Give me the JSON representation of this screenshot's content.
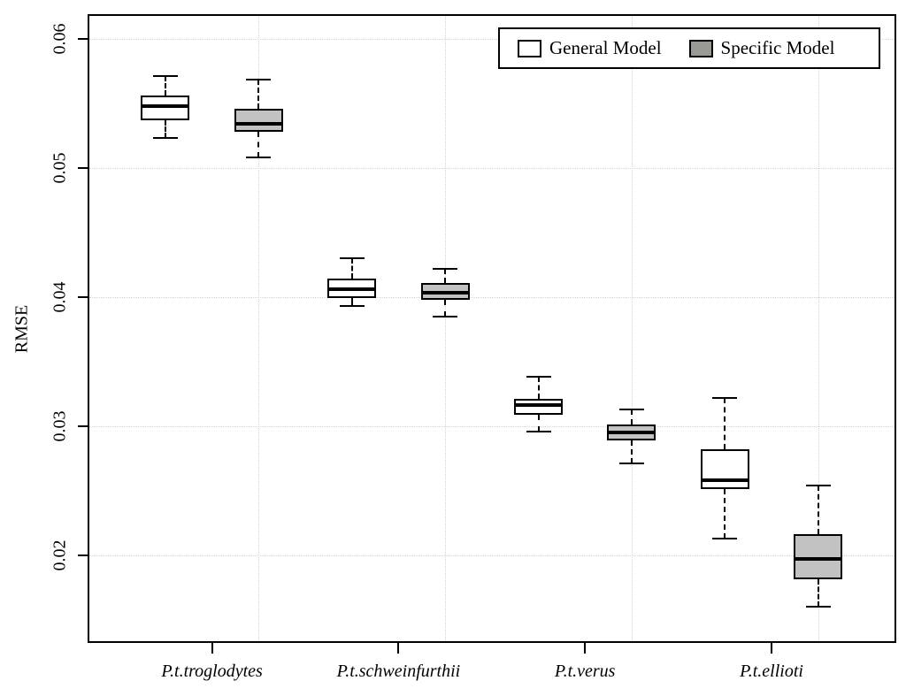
{
  "figure": {
    "legend": {
      "items": [
        {
          "label": "General Model",
          "fill": "#ffffff"
        },
        {
          "label": "Specific Model",
          "fill": "#9a9a94"
        }
      ]
    }
  },
  "chart_data": {
    "type": "boxplot",
    "title": "",
    "xlabel": "",
    "ylabel": "RMSE",
    "categories": [
      "P.t.troglodytes",
      "P.t.schweinfurthii",
      "P.t.verus",
      "P.t.ellioti"
    ],
    "series": [
      {
        "name": "General Model",
        "fill": "#ffffff",
        "boxes": [
          {
            "whisker_low": 0.0523,
            "q1": 0.0537,
            "median": 0.0548,
            "q3": 0.0556,
            "whisker_high": 0.0571
          },
          {
            "whisker_low": 0.0393,
            "q1": 0.0399,
            "median": 0.0406,
            "q3": 0.0414,
            "whisker_high": 0.043
          },
          {
            "whisker_low": 0.0296,
            "q1": 0.0309,
            "median": 0.0316,
            "q3": 0.0321,
            "whisker_high": 0.0338
          },
          {
            "whisker_low": 0.0213,
            "q1": 0.0251,
            "median": 0.0258,
            "q3": 0.0282,
            "whisker_high": 0.0322
          }
        ]
      },
      {
        "name": "Specific Model",
        "fill": "#c2c2c2",
        "boxes": [
          {
            "whisker_low": 0.0508,
            "q1": 0.0528,
            "median": 0.0534,
            "q3": 0.0546,
            "whisker_high": 0.0568
          },
          {
            "whisker_low": 0.0385,
            "q1": 0.0398,
            "median": 0.0403,
            "q3": 0.0411,
            "whisker_high": 0.0422
          },
          {
            "whisker_low": 0.0271,
            "q1": 0.0289,
            "median": 0.0295,
            "q3": 0.0301,
            "whisker_high": 0.0313
          },
          {
            "whisker_low": 0.016,
            "q1": 0.0181,
            "median": 0.0197,
            "q3": 0.0216,
            "whisker_high": 0.0254
          }
        ]
      }
    ],
    "yticks": [
      0.02,
      0.03,
      0.04,
      0.05,
      0.06
    ],
    "ytick_labels": [
      "0.02",
      "0.03",
      "0.04",
      "0.05",
      "0.06"
    ],
    "ylim": [
      0.0132,
      0.0619
    ],
    "grid": {
      "horizontal": "dotted at yticks",
      "vertical": "dotted at specific-model box positions",
      "color": "#d4d4d4"
    },
    "legend_position": "top-right"
  }
}
